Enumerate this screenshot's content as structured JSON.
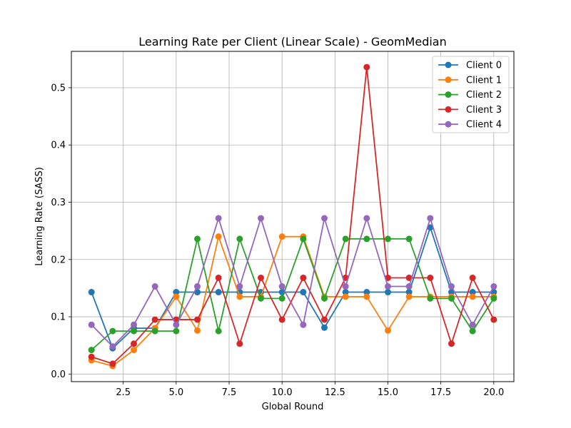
{
  "chart_data": {
    "type": "line",
    "title": "Learning Rate per Client (Linear Scale) - GeomMedian",
    "xlabel": "Global Round",
    "ylabel": "Learning Rate (SASS)",
    "xlim": [
      0.05,
      20.95
    ],
    "ylim": [
      -0.0133,
      0.5635
    ],
    "xticks": [
      2.5,
      5.0,
      7.5,
      10.0,
      12.5,
      15.0,
      17.5,
      20.0
    ],
    "xtick_labels": [
      "2.5",
      "5.0",
      "7.5",
      "10.0",
      "12.5",
      "15.0",
      "17.5",
      "20.0"
    ],
    "yticks": [
      0.0,
      0.1,
      0.2,
      0.3,
      0.4,
      0.5
    ],
    "ytick_labels": [
      "0.0",
      "0.1",
      "0.2",
      "0.3",
      "0.4",
      "0.5"
    ],
    "grid": true,
    "legend_position": "top-right",
    "x": [
      1,
      2,
      3,
      4,
      5,
      6,
      7,
      8,
      9,
      10,
      11,
      12,
      13,
      14,
      15,
      16,
      17,
      18,
      19,
      20
    ],
    "series": [
      {
        "name": "Client 0",
        "color": "#1f77b4",
        "values": [
          0.143,
          0.045,
          0.08,
          0.08,
          0.143,
          0.143,
          0.143,
          0.143,
          0.143,
          0.143,
          0.143,
          0.081,
          0.143,
          0.143,
          0.143,
          0.143,
          0.256,
          0.143,
          0.143,
          0.143
        ]
      },
      {
        "name": "Client 1",
        "color": "#ff7f0e",
        "values": [
          0.024,
          0.014,
          0.042,
          0.08,
          0.135,
          0.076,
          0.24,
          0.135,
          0.135,
          0.24,
          0.24,
          0.135,
          0.135,
          0.135,
          0.076,
          0.135,
          0.135,
          0.135,
          0.135,
          0.135
        ]
      },
      {
        "name": "Client 2",
        "color": "#2ca02c",
        "values": [
          0.042,
          0.075,
          0.075,
          0.075,
          0.075,
          0.236,
          0.075,
          0.236,
          0.132,
          0.132,
          0.236,
          0.132,
          0.236,
          0.236,
          0.236,
          0.236,
          0.132,
          0.132,
          0.075,
          0.132
        ]
      },
      {
        "name": "Client 3",
        "color": "#d62728",
        "values": [
          0.03,
          0.018,
          0.053,
          0.095,
          0.095,
          0.095,
          0.168,
          0.053,
          0.168,
          0.095,
          0.168,
          0.095,
          0.168,
          0.536,
          0.168,
          0.168,
          0.168,
          0.053,
          0.168,
          0.095
        ]
      },
      {
        "name": "Client 4",
        "color": "#9467bd",
        "values": [
          0.086,
          0.048,
          0.086,
          0.153,
          0.086,
          0.153,
          0.272,
          0.153,
          0.272,
          0.153,
          0.086,
          0.272,
          0.153,
          0.272,
          0.153,
          0.153,
          0.272,
          0.153,
          0.086,
          0.153
        ]
      }
    ]
  }
}
